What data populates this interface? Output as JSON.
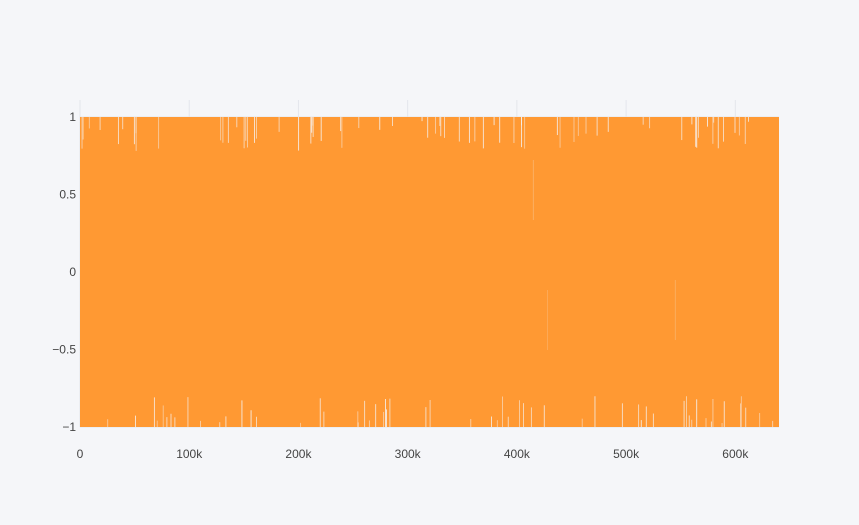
{
  "chart_data": {
    "type": "line",
    "title": "",
    "xlabel": "",
    "ylabel": "",
    "xlim": [
      0,
      640000
    ],
    "ylim": [
      -1,
      1
    ],
    "x_ticks": [
      0,
      100000,
      200000,
      300000,
      400000,
      500000,
      600000
    ],
    "x_tick_labels": [
      "0",
      "100k",
      "200k",
      "300k",
      "400k",
      "500k",
      "600k"
    ],
    "y_ticks": [
      1,
      0.5,
      0,
      -0.5,
      -1
    ],
    "y_tick_labels": [
      "1",
      "0.5",
      "0",
      "−0.5",
      "−1"
    ],
    "grid": true,
    "legend": "none",
    "series": [
      {
        "color": "#ff9933",
        "description": "dense oscillating signal spanning -1 to 1 over the full x range",
        "x_start": 0,
        "x_end": 640000,
        "y_min": -1,
        "y_max": 1
      }
    ]
  },
  "colors": {
    "background": "#f5f6f9",
    "grid": "#e4e6ec",
    "series": "#ff9933"
  }
}
